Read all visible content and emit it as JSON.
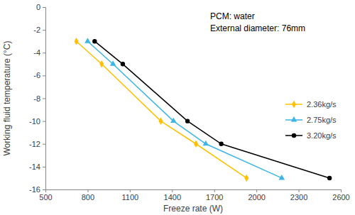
{
  "chart_data": {
    "type": "line",
    "x_label": "Freeze rate (W)",
    "y_label": "Working fluid temperature (°C)",
    "annotations": [
      "PCM: water",
      "External diameter: 76mm"
    ],
    "xlim": [
      500,
      2600
    ],
    "xticks": [
      500,
      800,
      1100,
      1400,
      1700,
      2000,
      2300,
      2600
    ],
    "ylim": [
      -16,
      0
    ],
    "yticks": [
      0,
      -2,
      -4,
      -6,
      -8,
      -10,
      -12,
      -14,
      -16
    ],
    "grid": false,
    "legend": "right",
    "series": [
      {
        "name": "2.36kg/s",
        "color": "#ffc000",
        "marker": "diamond",
        "x": [
          720,
          900,
          1320,
          1570,
          1930
        ],
        "values": [
          -3,
          -5,
          -10,
          -12,
          -15
        ]
      },
      {
        "name": "2.75kg/s",
        "color": "#3db5e6",
        "marker": "triangle",
        "x": [
          800,
          980,
          1410,
          1640,
          2180
        ],
        "values": [
          -3,
          -5,
          -10,
          -12,
          -15
        ]
      },
      {
        "name": "3.20kg/s",
        "color": "#000000",
        "marker": "circle",
        "x": [
          850,
          1050,
          1510,
          1750,
          2520
        ],
        "values": [
          -3,
          -5,
          -10,
          -12,
          -15
        ]
      }
    ]
  }
}
